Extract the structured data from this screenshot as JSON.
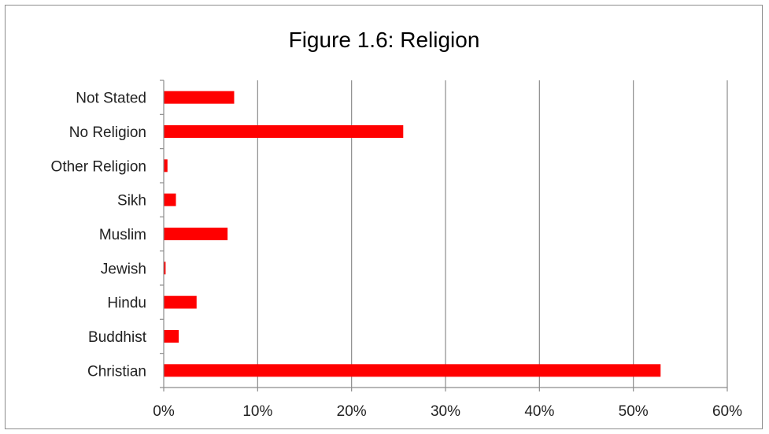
{
  "chart_data": {
    "type": "bar",
    "orientation": "horizontal",
    "title": "Figure 1.6: Religion",
    "xlabel": "",
    "ylabel": "",
    "categories": [
      "Not Stated",
      "No Religion",
      "Other Religion",
      "Sikh",
      "Muslim",
      "Jewish",
      "Hindu",
      "Buddhist",
      "Christian"
    ],
    "values": [
      7.5,
      25.5,
      0.4,
      1.3,
      6.8,
      0.2,
      3.5,
      1.6,
      52.9
    ],
    "value_unit": "%",
    "xlim": [
      0,
      60
    ],
    "xticks": [
      "0%",
      "10%",
      "20%",
      "30%",
      "40%",
      "50%",
      "60%"
    ],
    "xtick_values": [
      0,
      10,
      20,
      30,
      40,
      50,
      60
    ],
    "grid": "vertical",
    "legend": "none",
    "bar_color": "#ff0000"
  }
}
